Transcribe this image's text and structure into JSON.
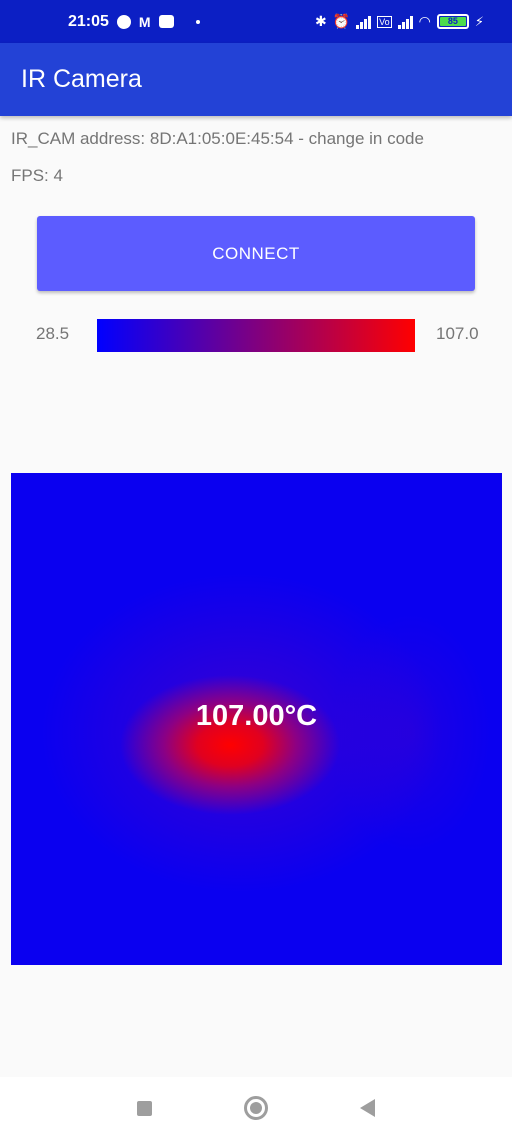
{
  "status_bar": {
    "time": "21:05",
    "battery": "85"
  },
  "app_bar": {
    "title": "IR Camera"
  },
  "info": {
    "address": "IR_CAM address: 8D:A1:05:0E:45:54 - change in code",
    "fps": "FPS: 4"
  },
  "connect_button": {
    "label": "CONNECT"
  },
  "scale": {
    "min": "28.5",
    "max": "107.0",
    "min_color": "#0000ff",
    "max_color": "#ff0000"
  },
  "thermal": {
    "max_temp_label": "107.00°C"
  },
  "nav": {
    "recents_icon": "square-icon",
    "home_icon": "circle-icon",
    "back_icon": "triangle-back-icon"
  }
}
